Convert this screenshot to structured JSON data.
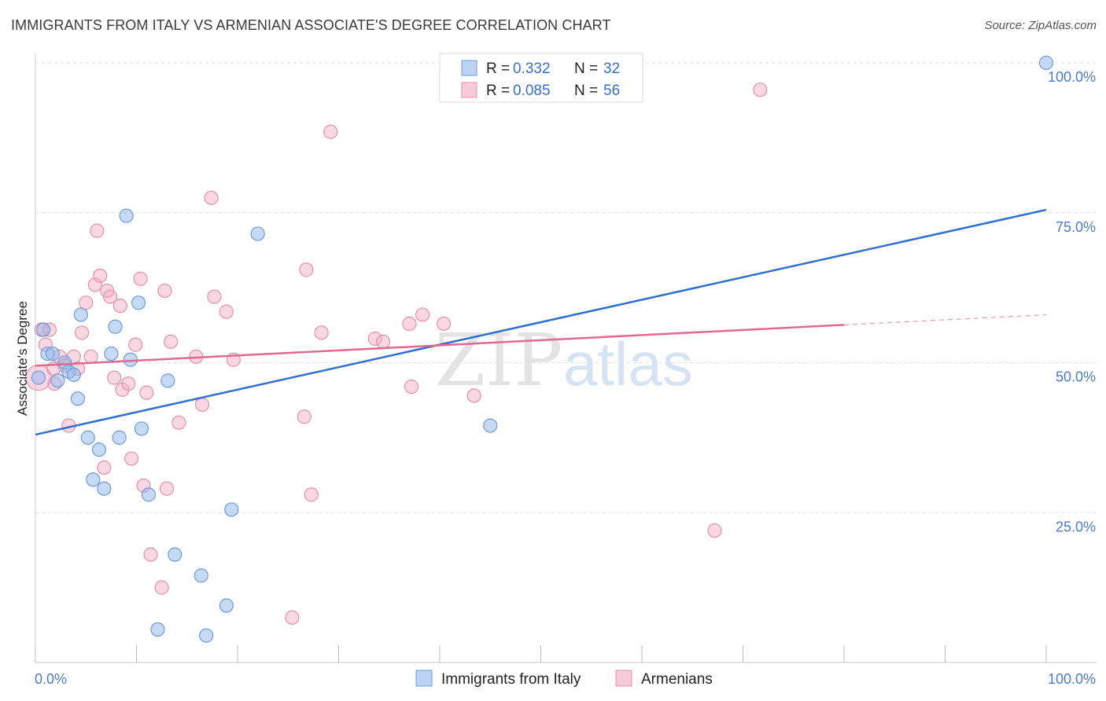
{
  "title": "IMMIGRANTS FROM ITALY VS ARMENIAN ASSOCIATE'S DEGREE CORRELATION CHART",
  "source": "Source: ZipAtlas.com",
  "watermark": {
    "zip": "ZIP",
    "atlas": "atlas"
  },
  "colors": {
    "blue": "#8fb5ec",
    "blue_line": "#2f6fd0",
    "pink": "#f2a9c1",
    "pink_line": "#e0698f",
    "tick": "#4a7cc9"
  },
  "legend": {
    "r_label": "R =",
    "n_label": "N =",
    "series": [
      {
        "r": "0.332",
        "n": "32"
      },
      {
        "r": "0.085",
        "n": "56"
      }
    ]
  },
  "chart_data": {
    "type": "scatter",
    "title": "IMMIGRANTS FROM ITALY VS ARMENIAN ASSOCIATE'S DEGREE CORRELATION CHART",
    "xlabel": "",
    "ylabel": "Associate's Degree",
    "xlim": [
      0,
      100
    ],
    "ylim": [
      0,
      100
    ],
    "x_tick_labels": [
      "0.0%",
      "100.0%"
    ],
    "y_tick_labels": [
      "25.0%",
      "50.0%",
      "75.0%",
      "100.0%"
    ],
    "y_ticks": [
      25,
      50,
      75,
      100
    ],
    "grid": true,
    "legend_position": "top-center",
    "series": [
      {
        "name": "Immigrants from Italy",
        "trend": {
          "x0": 0,
          "y0": 38,
          "x1": 100,
          "y1": 75.5
        },
        "points": [
          [
            0.3,
            47.5
          ],
          [
            0.8,
            55.5
          ],
          [
            1.2,
            51.5
          ],
          [
            1.7,
            51.5
          ],
          [
            2.2,
            47
          ],
          [
            2.9,
            50
          ],
          [
            3.3,
            48.5
          ],
          [
            3.8,
            48
          ],
          [
            4.2,
            44
          ],
          [
            4.5,
            58
          ],
          [
            5.2,
            37.5
          ],
          [
            5.7,
            30.5
          ],
          [
            6.3,
            35.5
          ],
          [
            6.8,
            29
          ],
          [
            7.5,
            51.5
          ],
          [
            7.9,
            56
          ],
          [
            8.3,
            37.5
          ],
          [
            9.4,
            50.5
          ],
          [
            9.0,
            74.5
          ],
          [
            10.2,
            60
          ],
          [
            10.5,
            39
          ],
          [
            11.2,
            28
          ],
          [
            12.1,
            5.5
          ],
          [
            13.1,
            47
          ],
          [
            13.8,
            18
          ],
          [
            16.4,
            14.5
          ],
          [
            16.9,
            4.5
          ],
          [
            18.9,
            9.5
          ],
          [
            19.4,
            25.5
          ],
          [
            22.0,
            71.5
          ],
          [
            45.0,
            39.5
          ],
          [
            100,
            100
          ]
        ]
      },
      {
        "name": "Armenians",
        "trend": {
          "x0": 0,
          "y0": 49.5,
          "x1": 100,
          "y1": 58
        },
        "trend_solid_until": 80,
        "points": [
          [
            0.3,
            47.5
          ],
          [
            0.6,
            55.5
          ],
          [
            1.0,
            53
          ],
          [
            1.4,
            55.5
          ],
          [
            1.9,
            46.5
          ],
          [
            2.4,
            51
          ],
          [
            2.9,
            49.5
          ],
          [
            3.3,
            39.5
          ],
          [
            3.8,
            51
          ],
          [
            4.2,
            49
          ],
          [
            4.6,
            55
          ],
          [
            5.0,
            60
          ],
          [
            5.5,
            51
          ],
          [
            5.9,
            63
          ],
          [
            6.1,
            72
          ],
          [
            6.4,
            64.5
          ],
          [
            6.8,
            32.5
          ],
          [
            7.1,
            62
          ],
          [
            7.4,
            61
          ],
          [
            7.8,
            47.5
          ],
          [
            8.4,
            59.5
          ],
          [
            8.6,
            45.5
          ],
          [
            9.2,
            46.5
          ],
          [
            9.5,
            34
          ],
          [
            9.9,
            53
          ],
          [
            10.4,
            64
          ],
          [
            10.7,
            29.5
          ],
          [
            11.0,
            45
          ],
          [
            11.4,
            18
          ],
          [
            12.5,
            12.5
          ],
          [
            12.8,
            62
          ],
          [
            13.0,
            29
          ],
          [
            13.4,
            53.5
          ],
          [
            14.2,
            40
          ],
          [
            15.9,
            51
          ],
          [
            16.5,
            43
          ],
          [
            17.4,
            77.5
          ],
          [
            17.7,
            61
          ],
          [
            18.9,
            58.5
          ],
          [
            19.6,
            50.5
          ],
          [
            25.4,
            7.5
          ],
          [
            26.6,
            41
          ],
          [
            26.8,
            65.5
          ],
          [
            27.3,
            28
          ],
          [
            28.3,
            55
          ],
          [
            33.6,
            54
          ],
          [
            34.4,
            53.5
          ],
          [
            37.0,
            56.5
          ],
          [
            37.2,
            46
          ],
          [
            38.3,
            58
          ],
          [
            40.4,
            56.5
          ],
          [
            43.4,
            44.5
          ],
          [
            29.2,
            88.5
          ],
          [
            67.2,
            22
          ],
          [
            71.7,
            95.5
          ],
          [
            1.8,
            49
          ]
        ]
      }
    ],
    "annotations": []
  },
  "bottom_legend": [
    {
      "label": "Immigrants from Italy"
    },
    {
      "label": "Armenians"
    }
  ]
}
